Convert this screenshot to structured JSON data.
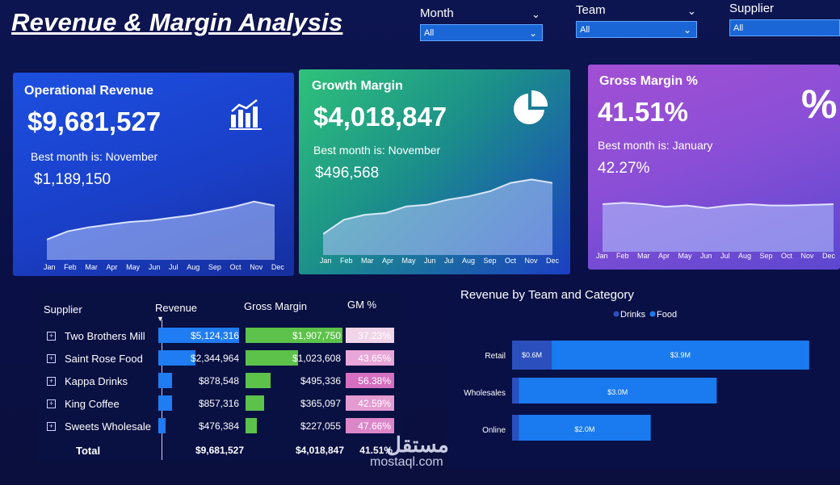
{
  "header": {
    "title": "Revenue & Margin Analysis"
  },
  "filters": [
    {
      "label": "Month",
      "value": "All"
    },
    {
      "label": "Team",
      "value": "All"
    },
    {
      "label": "Supplier",
      "value": "All"
    }
  ],
  "months": [
    "Jan",
    "Feb",
    "Mar",
    "Apr",
    "May",
    "Jun",
    "Jul",
    "Aug",
    "Sep",
    "Oct",
    "Nov",
    "Dec"
  ],
  "cards": {
    "operational_revenue": {
      "title": "Operational Revenue",
      "value": "$9,681,527",
      "best_label": "Best month is: November",
      "best_value": "$1,189,150",
      "icon": "bar-chart-icon",
      "trend": [
        0.3,
        0.42,
        0.48,
        0.52,
        0.56,
        0.58,
        0.62,
        0.66,
        0.72,
        0.78,
        0.86,
        0.8
      ]
    },
    "growth_margin": {
      "title": "Growth Margin",
      "value": "$4,018,847",
      "best_label": "Best month is: November",
      "best_value": "$496,568",
      "icon": "pie-chart-icon",
      "trend": [
        0.25,
        0.42,
        0.48,
        0.5,
        0.58,
        0.6,
        0.66,
        0.7,
        0.76,
        0.86,
        0.9,
        0.86
      ]
    },
    "gross_margin_pct": {
      "title": "Gross Margin %",
      "value": "41.51%",
      "best_label": "Best month is: January",
      "best_value": "42.27%",
      "icon": "percent-icon",
      "trend": [
        0.72,
        0.74,
        0.72,
        0.68,
        0.7,
        0.66,
        0.7,
        0.72,
        0.7,
        0.7,
        0.71,
        0.72
      ]
    }
  },
  "table": {
    "headers": [
      "Supplier",
      "Revenue",
      "Gross Margin",
      "GM %"
    ],
    "rows": [
      {
        "supplier": "Two Brothers Mill",
        "revenue": "$5,124,316",
        "margin": "$1,907,750",
        "gm": "37.23%",
        "rev_frac": 1.0,
        "mar_frac": 1.0
      },
      {
        "supplier": "Saint Rose Food",
        "revenue": "$2,344,964",
        "margin": "$1,023,608",
        "gm": "43.65%",
        "rev_frac": 0.46,
        "mar_frac": 0.54
      },
      {
        "supplier": "Kappa Drinks",
        "revenue": "$878,548",
        "margin": "$495,336",
        "gm": "56.38%",
        "rev_frac": 0.17,
        "mar_frac": 0.26
      },
      {
        "supplier": "King Coffee",
        "revenue": "$857,316",
        "margin": "$365,097",
        "gm": "42.59%",
        "rev_frac": 0.167,
        "mar_frac": 0.19
      },
      {
        "supplier": "Sweets Wholesale",
        "revenue": "$476,384",
        "margin": "$227,055",
        "gm": "47.66%",
        "rev_frac": 0.093,
        "mar_frac": 0.12
      }
    ],
    "total": {
      "label": "Total",
      "revenue": "$9,681,527",
      "margin": "$4,018,847",
      "gm": "41.51%"
    }
  },
  "chart_data": {
    "type": "bar",
    "title": "Revenue by Team and Category",
    "orientation": "horizontal",
    "stacked": true,
    "categories": [
      "Retail",
      "Wholesales",
      "Online"
    ],
    "series": [
      {
        "name": "Drinks",
        "values": [
          0.6,
          0.1,
          0.1
        ]
      },
      {
        "name": "Food",
        "values": [
          3.9,
          3.0,
          2.0
        ]
      }
    ],
    "value_labels": {
      "Drinks": [
        "$0.6M",
        "",
        ""
      ],
      "Food": [
        "$3.9M",
        "$3.0M",
        "$2.0M"
      ]
    },
    "unit": "M",
    "xlim": [
      0,
      4.6
    ],
    "legend": "top"
  },
  "colors": {
    "drinks": "#2b4fbd",
    "food": "#1a7af0",
    "rev_bar": "#1f7cf2",
    "margin_bar": "#5cc24a"
  },
  "watermark": {
    "arabic": "مستقل",
    "latin": "mostaql.com"
  }
}
